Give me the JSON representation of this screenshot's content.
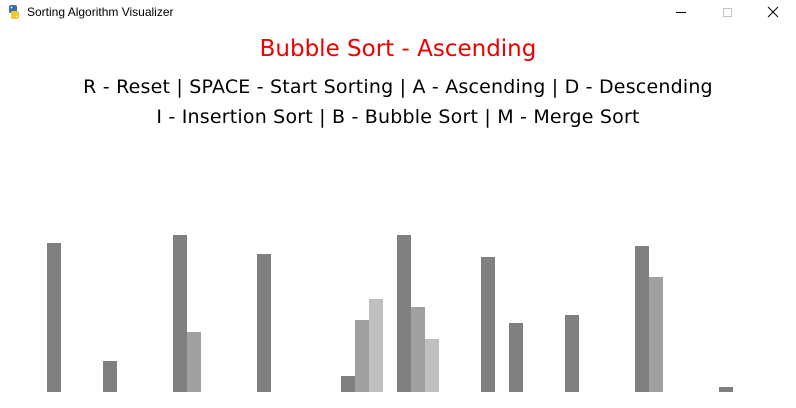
{
  "window": {
    "title": "Sorting Algorithm Visualizer",
    "icon": "python-icon"
  },
  "controls": {
    "minimize": "minimize-icon",
    "maximize": "maximize-icon",
    "close": "close-icon",
    "close_glyph": "✕"
  },
  "header": {
    "algorithm_title": "Bubble Sort - Ascending",
    "instructions_line1": "R - Reset | SPACE - Start Sorting | A - Ascending | D - Descending",
    "instructions_line2": "I - Insertion Sort | B - Bubble Sort | M - Merge Sort"
  },
  "colors": {
    "title": "#ee0000",
    "text": "#000000",
    "background": "#ffffff",
    "bar_shades": [
      "#808080",
      "#a0a0a0",
      "#c0c0c0"
    ]
  },
  "chart_data": {
    "type": "bar",
    "max_value": 100,
    "values": [
      95,
      0,
      0,
      0,
      20,
      0,
      0,
      0,
      0,
      100,
      38,
      0,
      0,
      0,
      0,
      88,
      0,
      0,
      0,
      0,
      0,
      10,
      46,
      59,
      0,
      100,
      54,
      34,
      0,
      0,
      0,
      86,
      0,
      44,
      0,
      0,
      0,
      49,
      0,
      0,
      0,
      0,
      93,
      73,
      0,
      0,
      0,
      0,
      3
    ]
  }
}
